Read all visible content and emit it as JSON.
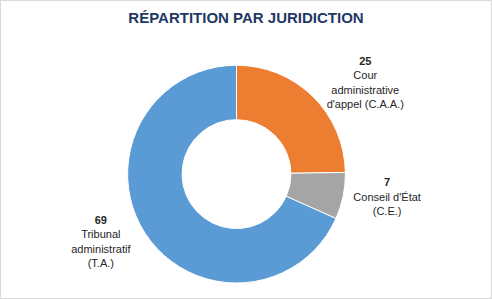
{
  "chart_data": {
    "type": "pie",
    "title": "RÉPARTITION PAR JURIDICTION",
    "categories": [
      "Cour\nadministrative\nd'appel (C.A.A.)",
      "Conseil d'État\n(C.E.)",
      "Tribunal\nadministratif\n(T.A.)"
    ],
    "values": [
      25,
      7,
      69
    ],
    "colors": [
      "#ed7d31",
      "#a5a5a5",
      "#5b9bd5"
    ],
    "data_labels": true
  }
}
